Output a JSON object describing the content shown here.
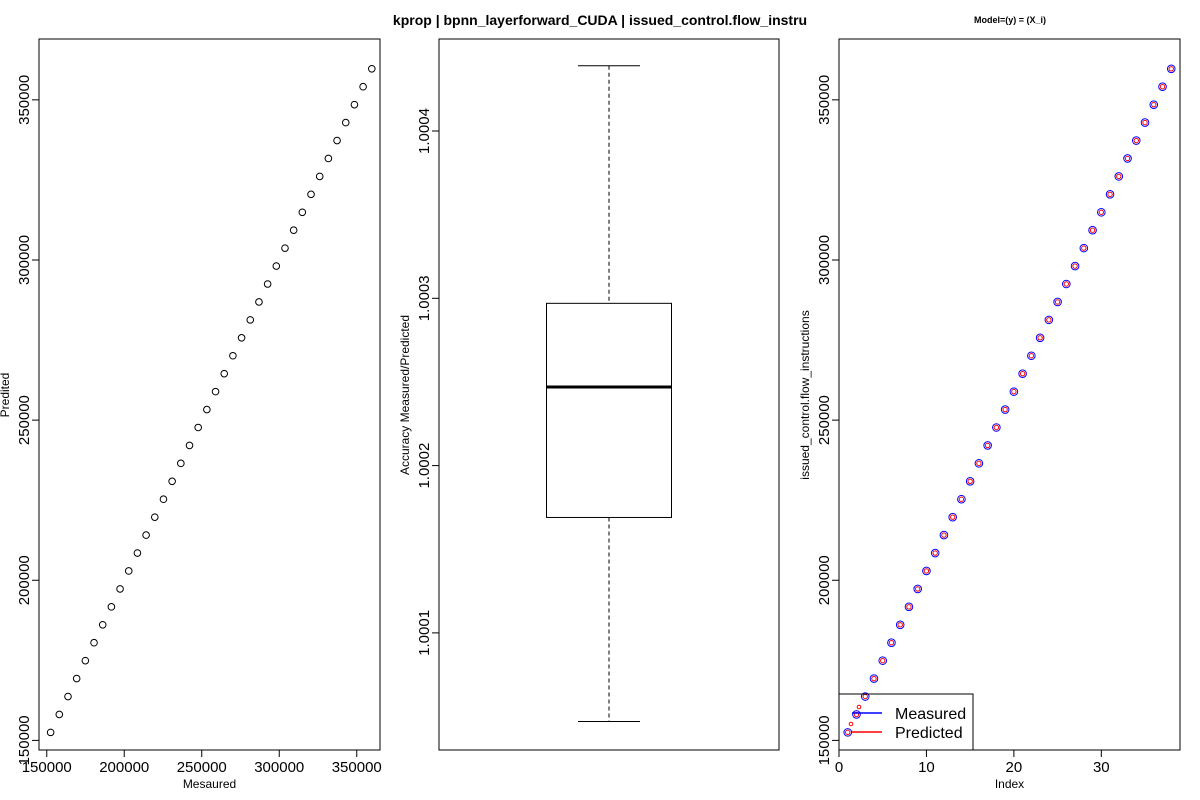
{
  "chart_data": [
    {
      "type": "scatter",
      "xlabel": "Mesaured",
      "ylabel": "Predited",
      "xlim": [
        145000,
        365000
      ],
      "ylim": [
        147000,
        369000
      ],
      "x_ticks": [
        150000,
        200000,
        250000,
        300000,
        350000
      ],
      "y_ticks": [
        150000,
        200000,
        250000,
        300000,
        350000
      ],
      "x_tick_labels": [
        "150000",
        "200000",
        "250000",
        "300000",
        "350000"
      ],
      "y_tick_labels": [
        "150000",
        "200000",
        "250000",
        "300000",
        "350000"
      ],
      "point_color": "#000000",
      "x": [
        152500,
        158100,
        163700,
        169300,
        174900,
        180500,
        186100,
        191700,
        197300,
        202900,
        208500,
        214100,
        219700,
        225300,
        230900,
        236500,
        242100,
        247700,
        253300,
        258900,
        264500,
        270100,
        275700,
        281300,
        286900,
        292500,
        298100,
        303700,
        309300,
        314900,
        320500,
        326100,
        331700,
        337300,
        342900,
        348500,
        354100,
        359700
      ],
      "y": [
        152500,
        158100,
        163700,
        169300,
        174900,
        180500,
        186100,
        191700,
        197300,
        202900,
        208500,
        214100,
        219700,
        225300,
        230900,
        236500,
        242100,
        247700,
        253300,
        258900,
        264500,
        270100,
        275700,
        281300,
        286900,
        292500,
        298100,
        303700,
        309300,
        314900,
        320500,
        326100,
        331700,
        337300,
        342900,
        348500,
        354100,
        359700
      ]
    },
    {
      "type": "box",
      "title": "kprop | bpnn_layerforward_CUDA | issued_control.flow_instru",
      "ylabel": "Accuracy  Measured/Predicted",
      "ylim": [
        1.00003,
        1.000455
      ],
      "y_ticks": [
        1.0001,
        1.0002,
        1.0003,
        1.0004
      ],
      "y_tick_labels": [
        "1.0001",
        "1.0002",
        "1.0003",
        "1.0004"
      ],
      "whisker_low": 1.000047,
      "q1": 1.000169,
      "median": 1.000247,
      "q3": 1.000297,
      "whisker_high": 1.000439
    },
    {
      "type": "scatter",
      "title": "Model=(y) = (X_i)",
      "xlabel": "Index",
      "ylabel": "issued_control.flow_instructions",
      "xlim": [
        0,
        39
      ],
      "ylim": [
        147000,
        369000
      ],
      "x_ticks": [
        0,
        10,
        20,
        30
      ],
      "y_ticks": [
        150000,
        200000,
        250000,
        300000,
        350000
      ],
      "x_tick_labels": [
        "0",
        "10",
        "20",
        "30"
      ],
      "y_tick_labels": [
        "150000",
        "200000",
        "250000",
        "300000",
        "350000"
      ],
      "series": [
        {
          "name": "Measured",
          "color": "#0000ff",
          "y": [
            152500,
            158100,
            163700,
            169300,
            174900,
            180500,
            186100,
            191700,
            197300,
            202900,
            208500,
            214100,
            219700,
            225300,
            230900,
            236500,
            242100,
            247700,
            253300,
            258900,
            264500,
            270100,
            275700,
            281300,
            286900,
            292500,
            298100,
            303700,
            309300,
            314900,
            320500,
            326100,
            331700,
            337300,
            342900,
            348500,
            354100,
            359700
          ]
        },
        {
          "name": "Predicted",
          "color": "#ff0000",
          "y": [
            152500,
            158100,
            163700,
            169300,
            174900,
            180500,
            186100,
            191700,
            197300,
            202900,
            208500,
            214100,
            219700,
            225300,
            230900,
            236500,
            242100,
            247700,
            253300,
            258900,
            264500,
            270100,
            275700,
            281300,
            286900,
            292500,
            298100,
            303700,
            309300,
            314900,
            320500,
            326100,
            331700,
            337300,
            342900,
            348500,
            354100,
            359700
          ]
        }
      ],
      "x": [
        1,
        2,
        3,
        4,
        5,
        6,
        7,
        8,
        9,
        10,
        11,
        12,
        13,
        14,
        15,
        16,
        17,
        18,
        19,
        20,
        21,
        22,
        23,
        24,
        25,
        26,
        27,
        28,
        29,
        30,
        31,
        32,
        33,
        34,
        35,
        36,
        37,
        38
      ],
      "legend": {
        "position": "bottom-left",
        "entries": [
          "Measured",
          "Predicted"
        ]
      }
    }
  ]
}
